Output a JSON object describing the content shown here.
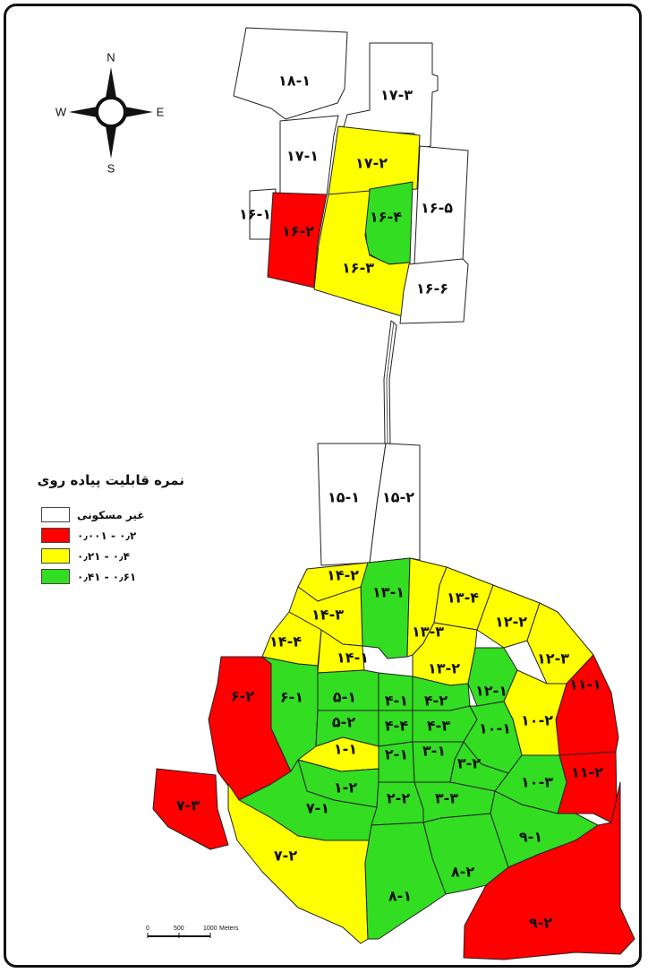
{
  "map": {
    "legend": {
      "title": "نمره قابلیت پیاده روی",
      "items": [
        {
          "label": "غیر مسکونی",
          "color": "#ffffff"
        },
        {
          "label": "۰٫۰۰۱ - ۰٫۲",
          "color": "#ff0000"
        },
        {
          "label": "۰٫۲۱ - ۰٫۴",
          "color": "#ffff00"
        },
        {
          "label": "۰٫۴۱ - ۰٫۶۱",
          "color": "#33dd22"
        }
      ]
    },
    "north_arrow": {
      "n": "N",
      "s": "S",
      "e": "E",
      "w": "W"
    },
    "scale_bar": {
      "labels": [
        "0",
        "500",
        "1000"
      ],
      "unit": "Meters"
    },
    "zones": {
      "z18_1": "۱۸-۱",
      "z17_3": "۱۷-۳",
      "z17_1": "۱۷-۱",
      "z17_2": "۱۷-۲",
      "z16_1": "۱۶-۱",
      "z16_2": "۱۶-۲",
      "z16_4": "۱۶-۴",
      "z16_5": "۱۶-۵",
      "z16_3": "۱۶-۳",
      "z16_6": "۱۶-۶",
      "z15_1": "۱۵-۱",
      "z15_2": "۱۵-۲",
      "z14_2": "۱۴-۲",
      "z13_1": "۱۳-۱",
      "z13_4": "۱۳-۴",
      "z14_3": "۱۴-۳",
      "z13_3": "۱۳-۳",
      "z12_2": "۱۲-۲",
      "z14_4": "۱۴-۴",
      "z12_3": "۱۲-۳",
      "z14_1": "۱۴-۱",
      "z13_2": "۱۳-۲",
      "z11_1": "۱۱-۱",
      "z12_1": "۱۲-۱",
      "z5_1": "۵-۱",
      "z4_1": "۴-۱",
      "z4_2": "۴-۲",
      "z6_2": "۶-۲",
      "z6_1": "۶-۱",
      "z10_2": "۱۰-۲",
      "z5_2": "۵-۲",
      "z4_4": "۴-۴",
      "z4_3": "۴-۳",
      "z10_1": "۱۰-۱",
      "z1_1": "۱-۱",
      "z3_1": "۳-۱",
      "z2_1": "۲-۱",
      "z3_2": "۳-۲",
      "z11_2": "۱۱-۲",
      "z7_3": "۷-۳",
      "z1_2": "۱-۲",
      "z10_3": "۱۰-۳",
      "z7_1": "۷-۱",
      "z2_2": "۲-۲",
      "z3_3": "۳-۳",
      "z9_1": "۹-۱",
      "z7_2": "۷-۲",
      "z8_2": "۸-۲",
      "z8_1": "۸-۱",
      "z9_2": "۹-۲"
    }
  }
}
